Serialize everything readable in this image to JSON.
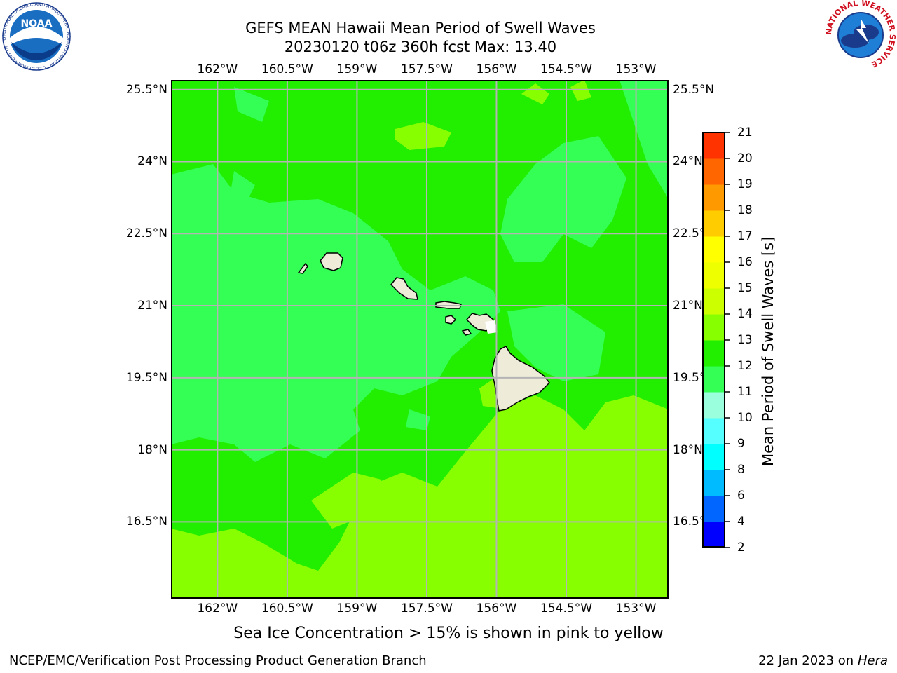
{
  "header": {
    "title_line1": "GEFS MEAN Hawaii Mean Period of Swell Waves",
    "title_line2": "20230120 t06z 360h fcst   Max: 13.40"
  },
  "map": {
    "lon_ticks": [
      "162°W",
      "160.5°W",
      "159°W",
      "157.5°W",
      "156°W",
      "154.5°W",
      "153°W"
    ],
    "lat_ticks": [
      "25.5°N",
      "24°N",
      "22.5°N",
      "21°N",
      "19.5°N",
      "18°N",
      "16.5°N"
    ],
    "lon_range": [
      -163.0,
      -152.3
    ],
    "lat_range": [
      14.9,
      25.7
    ],
    "background_color": "#22ee00",
    "land_color": "#eeebd9"
  },
  "colorbar": {
    "title": "Mean Period of Swell Waves [s]",
    "ticks": [
      "2",
      "4",
      "6",
      "8",
      "9",
      "10",
      "11",
      "12",
      "13",
      "14",
      "15",
      "16",
      "17",
      "18",
      "19",
      "20",
      "21"
    ],
    "colors": [
      "#0000ff",
      "#0066ff",
      "#00bbff",
      "#00ffff",
      "#55ffff",
      "#99ffdd",
      "#33ff55",
      "#22ee00",
      "#88ff00",
      "#ccff00",
      "#eeff00",
      "#ffff00",
      "#ffcc00",
      "#ff9900",
      "#ff6600",
      "#ff3300",
      "#ff0000"
    ]
  },
  "logos": {
    "left": {
      "name": "NOAA",
      "ring_text": "NATIONAL OCEANIC AND ATMOSPHERIC ADMINISTRATION · U.S. DEPARTMENT OF COMMERCE"
    },
    "right": {
      "ring_text": "NATIONAL WEATHER SERVICE"
    }
  },
  "footer": {
    "caption": "Sea Ice Concentration > 15% is shown in pink to yellow",
    "left": "NCEP/EMC/Verification Post Processing Product Generation Branch",
    "right_prefix": "22 Jan 2023 on ",
    "right_host": "Hera"
  }
}
